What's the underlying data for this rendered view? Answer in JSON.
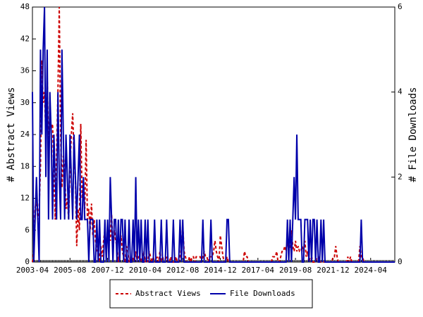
{
  "chart_data": {
    "type": "line",
    "y_label": "# Abstract Views",
    "y2_label": "# File Downloads",
    "ylim": [
      0,
      48
    ],
    "yticks": [
      0,
      6,
      12,
      18,
      24,
      30,
      36,
      42,
      48
    ],
    "y2lim": [
      0,
      6
    ],
    "y2ticks": [
      0,
      2,
      4,
      6
    ],
    "categories": [
      "2003-04",
      null,
      null,
      null,
      null,
      null,
      null,
      null,
      null,
      null,
      null,
      null,
      null,
      null,
      null,
      null,
      null,
      null,
      null,
      null,
      null,
      null,
      null,
      null,
      null,
      null,
      null,
      null,
      "2005-08",
      null,
      null,
      null,
      null,
      null,
      null,
      null,
      null,
      null,
      null,
      null,
      null,
      null,
      null,
      null,
      null,
      null,
      null,
      null,
      null,
      null,
      null,
      null,
      null,
      null,
      null,
      null,
      "2007-12",
      null,
      null,
      null,
      null,
      null,
      null,
      null,
      null,
      null,
      null,
      null,
      null,
      null,
      null,
      null,
      null,
      null,
      null,
      null,
      null,
      null,
      null,
      null,
      null,
      null,
      null,
      null,
      "2010-04",
      null,
      null,
      null,
      null,
      null,
      null,
      null,
      null,
      null,
      null,
      null,
      null,
      null,
      null,
      null,
      null,
      null,
      null,
      null,
      null,
      null,
      null,
      null,
      null,
      null,
      null,
      null,
      "2012-08",
      null,
      null,
      null,
      null,
      null,
      null,
      null,
      null,
      null,
      null,
      null,
      null,
      null,
      null,
      null,
      null,
      null,
      null,
      null,
      null,
      null,
      null,
      null,
      null,
      null,
      null,
      null,
      "2014-12",
      null,
      null,
      null,
      null,
      null,
      null,
      null,
      null,
      null,
      null,
      null,
      null,
      null,
      null,
      null,
      null,
      null,
      null,
      null,
      null,
      null,
      null,
      null,
      null,
      null,
      null,
      null,
      "2017-04",
      null,
      null,
      null,
      null,
      null,
      null,
      null,
      null,
      null,
      null,
      null,
      null,
      null,
      null,
      null,
      null,
      null,
      null,
      null,
      null,
      null,
      null,
      null,
      null,
      null,
      null,
      null,
      "2019-08",
      null,
      null,
      null,
      null,
      null,
      null,
      null,
      null,
      null,
      null,
      null,
      null,
      null,
      null,
      null,
      null,
      null,
      null,
      null,
      null,
      null,
      null,
      null,
      null,
      null,
      null,
      null,
      "2021-12",
      null,
      null,
      null,
      null,
      null,
      null,
      null,
      null,
      null,
      null,
      null,
      null,
      null,
      null,
      null,
      null,
      null,
      null,
      null,
      null,
      null,
      null,
      null,
      null,
      null,
      null,
      null,
      "2024-04",
      null,
      null,
      null,
      null,
      null,
      null,
      null,
      null,
      null,
      null,
      null,
      null,
      null,
      null,
      null,
      null,
      null,
      null
    ],
    "series": [
      {
        "name": "Abstract Views",
        "color": "#cc0000",
        "style": "dashed",
        "values": [
          0,
          2,
          10,
          12,
          8,
          10,
          18,
          38,
          30,
          32,
          24,
          35,
          22,
          28,
          25,
          26,
          16,
          8,
          20,
          32,
          48,
          24,
          14,
          20,
          18,
          10,
          12,
          8,
          18,
          24,
          28,
          20,
          16,
          3,
          10,
          6,
          26,
          12,
          14,
          10,
          23,
          8,
          10,
          6,
          11,
          5,
          8,
          4,
          2,
          3,
          0,
          3,
          1,
          4,
          6,
          3,
          4,
          6,
          4,
          9,
          2,
          6,
          4,
          3,
          0,
          2,
          5,
          2,
          1,
          0,
          3,
          2,
          0,
          1,
          0,
          1,
          0,
          2,
          0,
          1,
          1,
          0,
          1,
          2,
          0,
          1,
          0,
          2,
          1,
          0,
          1,
          0,
          0,
          1,
          0,
          2,
          0,
          1,
          0,
          0,
          1,
          0,
          0,
          1,
          0,
          0,
          0,
          1,
          0,
          0,
          1,
          3,
          7,
          2,
          1,
          0,
          0,
          1,
          0,
          1,
          1,
          0,
          1,
          1,
          1,
          1,
          0,
          1,
          2,
          1,
          1,
          0,
          1,
          1,
          1,
          2,
          4,
          2,
          1,
          0,
          5,
          3,
          1,
          0,
          0,
          1,
          0,
          0,
          0,
          0,
          0,
          0,
          0,
          0,
          0,
          0,
          0,
          0,
          2,
          1,
          1,
          0,
          0,
          0,
          0,
          0,
          0,
          0,
          0,
          0,
          0,
          0,
          0,
          0,
          0,
          0,
          0,
          0,
          0,
          1,
          1,
          1,
          2,
          0,
          0,
          1,
          2,
          2,
          3,
          2,
          4,
          2,
          3,
          6,
          3,
          2,
          4,
          2,
          3,
          2,
          2,
          3,
          2,
          4,
          1,
          2,
          0,
          1,
          1,
          0,
          0,
          0,
          1,
          1,
          0,
          0,
          0,
          0,
          0,
          0,
          0,
          0,
          0,
          0,
          1,
          1,
          3,
          1,
          0,
          0,
          0,
          0,
          0,
          0,
          0,
          1,
          0,
          1,
          0,
          0,
          0,
          0,
          0,
          0,
          3,
          1,
          1,
          0,
          0,
          0,
          0,
          0,
          0,
          0,
          0,
          0,
          0,
          0,
          0,
          0,
          0,
          0,
          0,
          0,
          0,
          0,
          0,
          0,
          0,
          0,
          0
        ]
      },
      {
        "name": "File Downloads",
        "color": "#0000aa",
        "style": "solid",
        "axis": "y2",
        "values": [
          4,
          0,
          1,
          2,
          1,
          0,
          5,
          3,
          5,
          6,
          2,
          5,
          1,
          4,
          3,
          1,
          3,
          2,
          1,
          4,
          2,
          1,
          5,
          3,
          1,
          3,
          2,
          1,
          3,
          2,
          1,
          3,
          2,
          1,
          2,
          3,
          1,
          1,
          2,
          1,
          1,
          1,
          0,
          1,
          1,
          1,
          0,
          0,
          1,
          0,
          1,
          0,
          0,
          0,
          1,
          0,
          1,
          0,
          2,
          1,
          0,
          1,
          1,
          0,
          1,
          0,
          1,
          1,
          0,
          1,
          0,
          0,
          1,
          0,
          0,
          1,
          0,
          2,
          0,
          1,
          0,
          1,
          0,
          0,
          1,
          0,
          1,
          0,
          0,
          0,
          0,
          1,
          0,
          0,
          0,
          0,
          1,
          0,
          0,
          0,
          1,
          0,
          0,
          0,
          0,
          1,
          0,
          0,
          0,
          0,
          1,
          0,
          1,
          0,
          0,
          0,
          0,
          0,
          0,
          0,
          0,
          0,
          0,
          0,
          0,
          0,
          0,
          1,
          0,
          0,
          0,
          0,
          0,
          1,
          0,
          0,
          0,
          0,
          0,
          0,
          0,
          0,
          0,
          0,
          0,
          1,
          1,
          0,
          0,
          0,
          0,
          0,
          0,
          0,
          0,
          0,
          0,
          0,
          0,
          0,
          0,
          0,
          0,
          0,
          0,
          0,
          0,
          0,
          0,
          0,
          0,
          0,
          0,
          0,
          0,
          0,
          0,
          0,
          0,
          0,
          0,
          0,
          0,
          0,
          0,
          0,
          0,
          0,
          0,
          0,
          1,
          0,
          1,
          0,
          1,
          2,
          1,
          3,
          1,
          1,
          1,
          0,
          0,
          1,
          1,
          1,
          0,
          1,
          0,
          1,
          1,
          0,
          1,
          0,
          0,
          1,
          0,
          1,
          0,
          0,
          0,
          0,
          0,
          0,
          0,
          0,
          0,
          0,
          0,
          0,
          0,
          0,
          0,
          0,
          0,
          0,
          0,
          0,
          0,
          0,
          0,
          0,
          0,
          0,
          0,
          1,
          0,
          0,
          0,
          0,
          0,
          0,
          0,
          0,
          0,
          0,
          0,
          0,
          0,
          0,
          0,
          0,
          0,
          0,
          0,
          0,
          0,
          0,
          0,
          0,
          0
        ]
      }
    ]
  }
}
